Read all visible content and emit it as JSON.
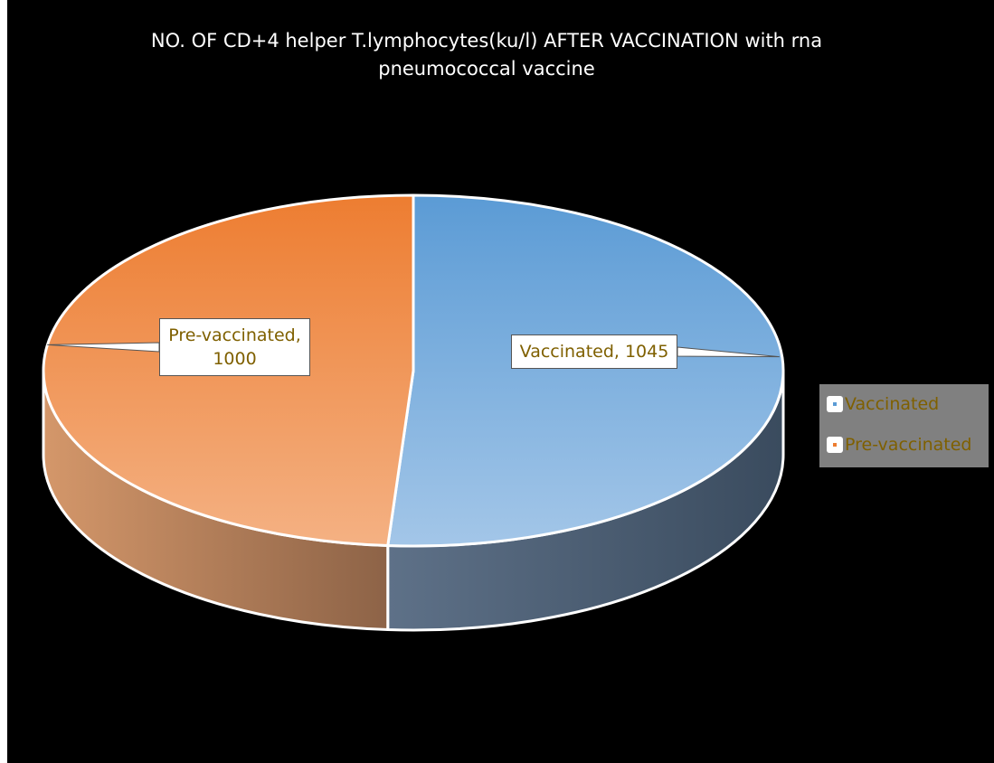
{
  "chart_data": {
    "type": "pie",
    "title": "NO. OF CD+4 helper T.lymphocytes(ku/l) AFTER VACCINATION with rna pneumococcal vaccine",
    "categories": [
      "Vaccinated",
      "Pre-vaccinated"
    ],
    "values": [
      1045,
      1000
    ],
    "value_labels": [
      "Vaccinated, 1045",
      "Pre-vaccinated, 1000"
    ],
    "colors": [
      "#5b9bd5",
      "#ed7d31"
    ],
    "legend": "right"
  }
}
